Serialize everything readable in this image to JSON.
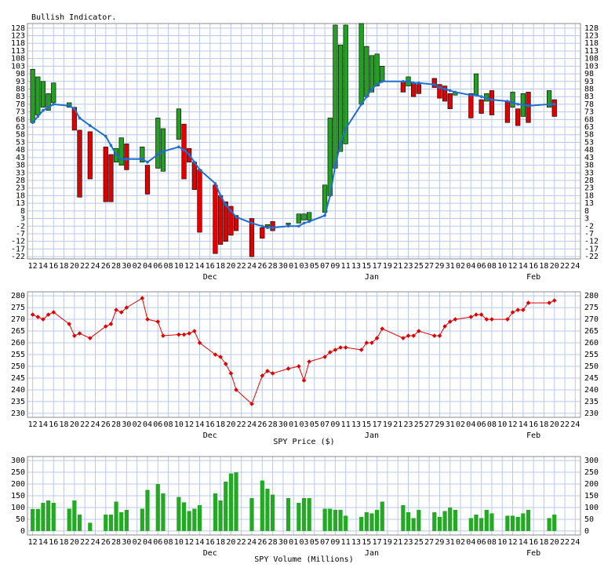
{
  "chart_data": {
    "type": "multi",
    "x": [
      0,
      1,
      2,
      3,
      4,
      7,
      8,
      9,
      11,
      14,
      15,
      16,
      17,
      18,
      21,
      22,
      24,
      25,
      28,
      29,
      30,
      31,
      32,
      35,
      36,
      37,
      38,
      39,
      42,
      44,
      45,
      46,
      49,
      51,
      52,
      53,
      56,
      57,
      58,
      59,
      60,
      63,
      64,
      65,
      66,
      67,
      71,
      72,
      73,
      74,
      77,
      78,
      79,
      80,
      81,
      84,
      85,
      86,
      87,
      88,
      91,
      92,
      93,
      94,
      95,
      99,
      100
    ],
    "xlim": [
      -1,
      105
    ],
    "xticks": [
      {
        "value": 0,
        "label": "12"
      },
      {
        "value": 2,
        "label": "14"
      },
      {
        "value": 4,
        "label": "16"
      },
      {
        "value": 6,
        "label": "18"
      },
      {
        "value": 8,
        "label": "20"
      },
      {
        "value": 10,
        "label": "22"
      },
      {
        "value": 12,
        "label": "24"
      },
      {
        "value": 14,
        "label": "26"
      },
      {
        "value": 16,
        "label": "28"
      },
      {
        "value": 18,
        "label": "30"
      },
      {
        "value": 20,
        "label": "02"
      },
      {
        "value": 22,
        "label": "04"
      },
      {
        "value": 24,
        "label": "06"
      },
      {
        "value": 26,
        "label": "08"
      },
      {
        "value": 28,
        "label": "10"
      },
      {
        "value": 30,
        "label": "12"
      },
      {
        "value": 32,
        "label": "14"
      },
      {
        "value": 34,
        "label": "16"
      },
      {
        "value": 36,
        "label": "18"
      },
      {
        "value": 38,
        "label": "20"
      },
      {
        "value": 40,
        "label": "22"
      },
      {
        "value": 42,
        "label": "24"
      },
      {
        "value": 44,
        "label": "26"
      },
      {
        "value": 46,
        "label": "28"
      },
      {
        "value": 48,
        "label": "30"
      },
      {
        "value": 50,
        "label": "01"
      },
      {
        "value": 52,
        "label": "03"
      },
      {
        "value": 54,
        "label": "05"
      },
      {
        "value": 56,
        "label": "07"
      },
      {
        "value": 58,
        "label": "09"
      },
      {
        "value": 60,
        "label": "11"
      },
      {
        "value": 62,
        "label": "13"
      },
      {
        "value": 64,
        "label": "15"
      },
      {
        "value": 66,
        "label": "17"
      },
      {
        "value": 68,
        "label": "19"
      },
      {
        "value": 70,
        "label": "21"
      },
      {
        "value": 72,
        "label": "23"
      },
      {
        "value": 74,
        "label": "25"
      },
      {
        "value": 76,
        "label": "27"
      },
      {
        "value": 78,
        "label": "29"
      },
      {
        "value": 80,
        "label": "31"
      },
      {
        "value": 82,
        "label": "02"
      },
      {
        "value": 84,
        "label": "04"
      },
      {
        "value": 86,
        "label": "06"
      },
      {
        "value": 88,
        "label": "08"
      },
      {
        "value": 90,
        "label": "10"
      },
      {
        "value": 92,
        "label": "12"
      },
      {
        "value": 94,
        "label": "14"
      },
      {
        "value": 96,
        "label": "16"
      },
      {
        "value": 98,
        "label": "18"
      },
      {
        "value": 100,
        "label": "20"
      },
      {
        "value": 102,
        "label": "22"
      },
      {
        "value": 104,
        "label": "24"
      }
    ],
    "month_labels": [
      {
        "value": 34,
        "label": "Dec"
      },
      {
        "value": 65,
        "label": "Jan"
      },
      {
        "value": 96,
        "label": "Feb"
      }
    ],
    "grid": true,
    "panels": [
      {
        "type": "candle",
        "title": "Bullish Indicator.",
        "ylim": [
          -23.5,
          131
        ],
        "yticks": [
          128,
          123,
          118,
          113,
          108,
          103,
          98,
          93,
          88,
          83,
          78,
          73,
          68,
          63,
          58,
          53,
          48,
          43,
          38,
          33,
          28,
          23,
          18,
          13,
          8,
          3,
          -2,
          -7,
          -12,
          -17,
          -22
        ],
        "open": [
          66,
          71,
          76,
          74,
          79,
          76,
          76,
          61,
          60,
          50,
          45,
          40,
          38,
          52,
          40,
          38,
          36,
          34,
          55,
          65,
          49,
          40,
          35,
          25,
          18,
          14,
          11,
          5,
          3,
          -3,
          -2,
          1,
          -1,
          0,
          2,
          2,
          7,
          18,
          36,
          47,
          52,
          78,
          83,
          86,
          90,
          93,
          93,
          90,
          92,
          91,
          95,
          91,
          90,
          85,
          84,
          85,
          84,
          81,
          80,
          87,
          80,
          76,
          75,
          70,
          86,
          76,
          81
        ],
        "close": [
          101,
          96,
          93,
          85,
          92,
          79,
          61,
          17,
          29,
          14,
          14,
          49,
          56,
          35,
          50,
          19,
          69,
          62,
          75,
          29,
          40,
          22,
          -6,
          -20,
          -14,
          -12,
          -8,
          -5,
          -22,
          -10,
          -1,
          -5,
          0,
          6,
          6,
          7,
          25,
          69,
          130,
          117,
          130,
          131,
          116,
          110,
          111,
          103,
          86,
          96,
          83,
          85,
          89,
          82,
          80,
          75,
          86,
          69,
          98,
          72,
          85,
          71,
          66,
          86,
          64,
          85,
          66,
          87,
          70
        ],
        "ma": [
          66,
          70,
          74,
          76,
          78,
          77,
          75,
          69,
          64,
          57,
          51,
          45,
          42,
          42,
          42,
          40,
          45,
          47,
          50,
          48,
          45,
          40,
          35,
          26,
          18,
          12,
          8,
          4,
          0,
          -2,
          -3,
          -3,
          -2,
          -2,
          0,
          1,
          5,
          18,
          38,
          52,
          62,
          78,
          83,
          88,
          91,
          93,
          93,
          93,
          92,
          92,
          91,
          89,
          88,
          87,
          86,
          84,
          84,
          83,
          82,
          81,
          80,
          79,
          78,
          78,
          77,
          78,
          78
        ],
        "up_color": "#22a022",
        "down_color": "#e00000",
        "ma_color": "#1f6fd0"
      },
      {
        "type": "line",
        "xlabel": "SPY Price ($)",
        "ylim": [
          228.3,
          281.7
        ],
        "yticks": [
          280,
          275,
          270,
          265,
          260,
          255,
          250,
          245,
          240,
          235,
          230
        ],
        "values": [
          272,
          271,
          270,
          272,
          273,
          268,
          263,
          264,
          262,
          267,
          268,
          274,
          273,
          275,
          279,
          270,
          269,
          263,
          263.5,
          263.5,
          264,
          265,
          260,
          255,
          254,
          251,
          247,
          240,
          234,
          246,
          248,
          247,
          249,
          250,
          244,
          252,
          254,
          256,
          257,
          258,
          258,
          257,
          260,
          260,
          262,
          266,
          262,
          263,
          263,
          265,
          263,
          263,
          267,
          269,
          270,
          271,
          272,
          272,
          270,
          270,
          270,
          273,
          274,
          274,
          277,
          277,
          278
        ],
        "color": "#e00000"
      },
      {
        "type": "bar",
        "xlabel": "SPY Volume (Millions)",
        "ylim": [
          -17,
          317
        ],
        "yticks": [
          300,
          250,
          200,
          150,
          100,
          50,
          0
        ],
        "values": [
          94,
          94,
          120,
          130,
          120,
          95,
          130,
          70,
          35,
          70,
          70,
          125,
          80,
          90,
          95,
          175,
          200,
          160,
          145,
          122,
          85,
          95,
          110,
          160,
          130,
          210,
          245,
          250,
          140,
          215,
          180,
          155,
          140,
          120,
          140,
          140,
          95,
          95,
          90,
          90,
          65,
          60,
          80,
          75,
          90,
          125,
          110,
          80,
          55,
          90,
          80,
          60,
          85,
          100,
          90,
          55,
          70,
          55,
          90,
          75,
          65,
          65,
          60,
          75,
          90,
          55,
          70
        ],
        "color": "#22aa22"
      }
    ]
  }
}
